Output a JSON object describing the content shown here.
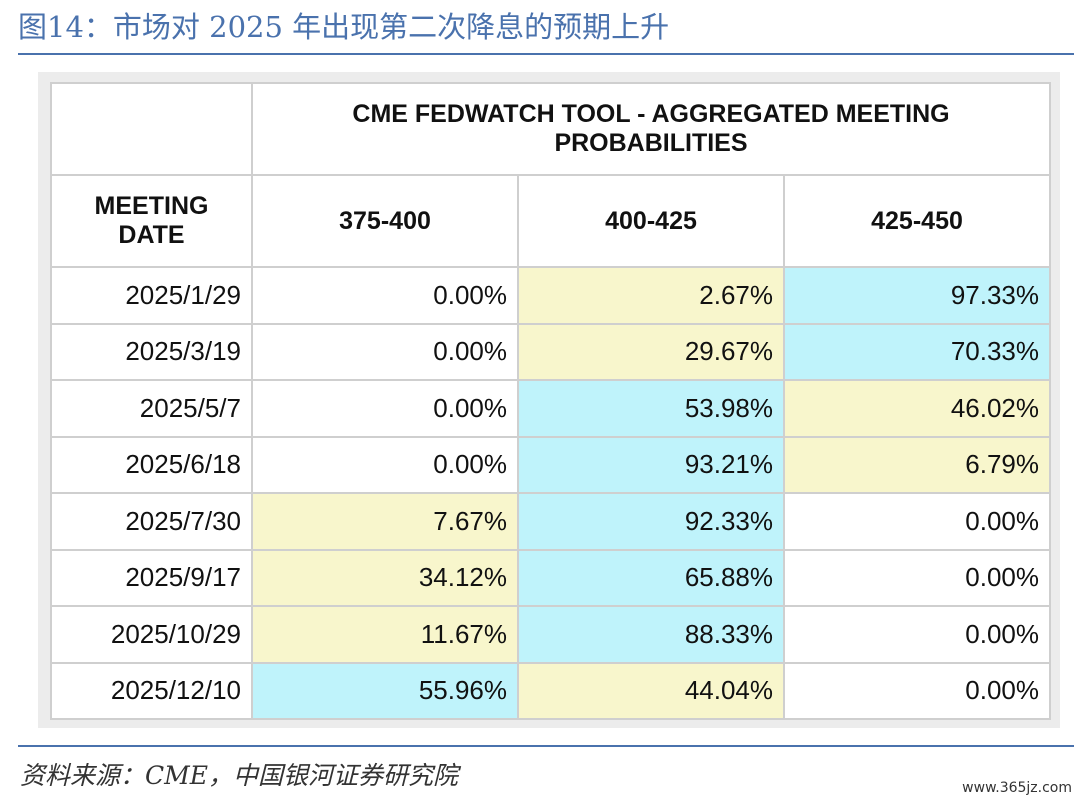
{
  "figure": {
    "title": "图14：市场对 2025 年出现第二次降息的预期上升",
    "source": "资料来源：CME，中国银河证券研究院",
    "watermark": "www.365jz.com"
  },
  "table": {
    "caption": "CME FEDWATCH TOOL - AGGREGATED MEETING PROBABILITIES",
    "columns": [
      "MEETING DATE",
      "375-400",
      "400-425",
      "425-450"
    ],
    "rows": [
      {
        "date": "2025/1/29",
        "values": [
          "0.00%",
          "2.67%",
          "97.33%"
        ],
        "colors": [
          "white",
          "yellow",
          "cyan"
        ]
      },
      {
        "date": "2025/3/19",
        "values": [
          "0.00%",
          "29.67%",
          "70.33%"
        ],
        "colors": [
          "white",
          "yellow",
          "cyan"
        ]
      },
      {
        "date": "2025/5/7",
        "values": [
          "0.00%",
          "53.98%",
          "46.02%"
        ],
        "colors": [
          "white",
          "cyan",
          "yellow"
        ]
      },
      {
        "date": "2025/6/18",
        "values": [
          "0.00%",
          "93.21%",
          "6.79%"
        ],
        "colors": [
          "white",
          "cyan",
          "yellow"
        ]
      },
      {
        "date": "2025/7/30",
        "values": [
          "7.67%",
          "92.33%",
          "0.00%"
        ],
        "colors": [
          "yellow",
          "cyan",
          "white"
        ]
      },
      {
        "date": "2025/9/17",
        "values": [
          "34.12%",
          "65.88%",
          "0.00%"
        ],
        "colors": [
          "yellow",
          "cyan",
          "white"
        ]
      },
      {
        "date": "2025/10/29",
        "values": [
          "11.67%",
          "88.33%",
          "0.00%"
        ],
        "colors": [
          "yellow",
          "cyan",
          "white"
        ]
      },
      {
        "date": "2025/12/10",
        "values": [
          "55.96%",
          "44.04%",
          "0.00%"
        ],
        "colors": [
          "cyan",
          "yellow",
          "white"
        ]
      }
    ]
  },
  "colors": {
    "title": "#4a72ad",
    "yellow": "#f8f6cc",
    "cyan": "#bff3fb",
    "white": "#ffffff"
  }
}
